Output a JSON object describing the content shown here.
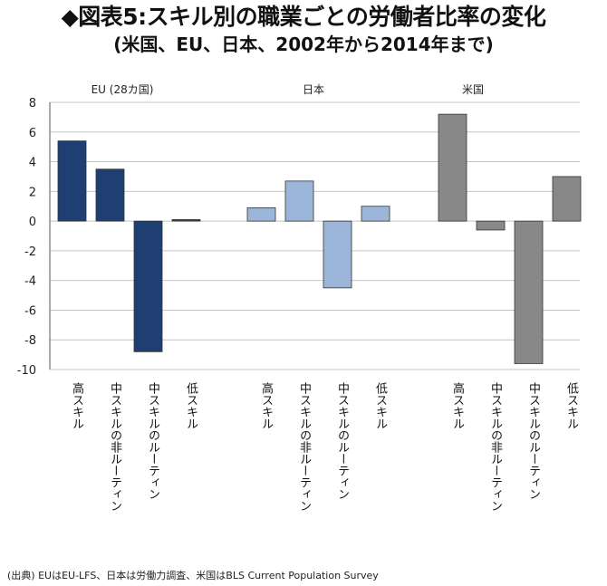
{
  "header": {
    "title": "◆図表5:スキル別の職業ごとの労働者比率の変化",
    "subtitle": "(米国、EU、日本、2002年から2014年まで)"
  },
  "source": "(出典) EUはEU-LFS、日本は労働力調査、米国はBLS Current Population Survey",
  "colors": {
    "EU": "#1f3f73",
    "日本": "#9cb6da",
    "米国": "#888888",
    "grid": "#c4c4c4",
    "axis": "#555555"
  },
  "chart_data": {
    "type": "bar",
    "title": "スキル別の職業ごとの労働者比率の変化",
    "ylim": [
      -10,
      8
    ],
    "yticks": [
      8,
      6,
      4,
      2,
      0,
      -2,
      -4,
      -6,
      -8,
      -10
    ],
    "grid": true,
    "categories": [
      "高スキル",
      "中スキルの非ルーティン",
      "中スキルのルーティン",
      "低スキル"
    ],
    "series": [
      {
        "name": "EU (28カ国)",
        "values": [
          5.4,
          3.5,
          -8.8,
          0.1
        ]
      },
      {
        "name": "日本",
        "values": [
          0.9,
          2.7,
          -4.5,
          1.0
        ]
      },
      {
        "name": "米国",
        "values": [
          7.2,
          -0.6,
          -9.6,
          3.0
        ]
      }
    ]
  }
}
